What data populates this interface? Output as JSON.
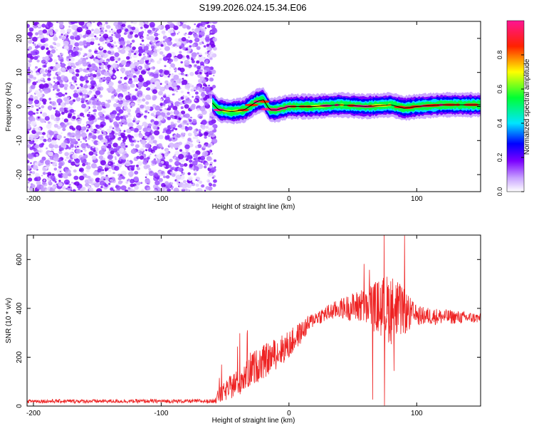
{
  "title": "S199.2026.024.15.34.E06",
  "chart_data": [
    {
      "type": "heatmap",
      "xlabel": "Height of straight line (km)",
      "ylabel": "Frequency (Hz)",
      "xlim": [
        -205,
        150
      ],
      "ylim": [
        -25,
        25
      ],
      "xticks": [
        -200,
        -100,
        0,
        100
      ],
      "yticks": [
        -20,
        -10,
        0,
        10,
        20
      ],
      "noise_region_x": [
        -205,
        -60
      ],
      "signal_track": {
        "x": [
          -60,
          -55,
          -45,
          -35,
          -25,
          -20,
          -15,
          -10,
          0,
          20,
          40,
          60,
          80,
          90,
          100,
          120,
          150
        ],
        "y": [
          1,
          -1,
          -1.5,
          -1,
          1.5,
          2,
          -1,
          -1,
          0,
          0,
          0.5,
          0,
          0.5,
          -0.5,
          0,
          0.5,
          0.5
        ]
      },
      "colorbar": {
        "label": "Normalized spectral amplitude",
        "range": [
          0.0,
          1.0
        ],
        "ticks": [
          "0.0",
          "0.2",
          "0.4",
          "0.6",
          "0.8"
        ]
      }
    },
    {
      "type": "line",
      "xlabel": "Height of straight line (km)",
      "ylabel": "SNR (10 * v/v)",
      "xlim": [
        -205,
        150
      ],
      "ylim": [
        0,
        700
      ],
      "xticks": [
        -200,
        -100,
        0,
        100
      ],
      "yticks": [
        0,
        200,
        400,
        600
      ],
      "color": "#ee2222",
      "envelope": {
        "x": [
          -205,
          -60,
          -55,
          -40,
          -30,
          -20,
          0,
          20,
          40,
          60,
          80,
          100,
          150
        ],
        "base": [
          20,
          20,
          40,
          100,
          150,
          180,
          250,
          360,
          400,
          410,
          400,
          370,
          360
        ],
        "noise": [
          8,
          8,
          30,
          60,
          70,
          70,
          60,
          30,
          40,
          80,
          150,
          40,
          20
        ]
      }
    }
  ]
}
